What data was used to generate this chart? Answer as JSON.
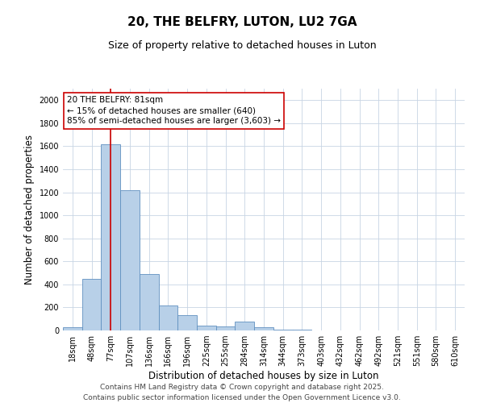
{
  "title_line1": "20, THE BELFRY, LUTON, LU2 7GA",
  "title_line2": "Size of property relative to detached houses in Luton",
  "xlabel": "Distribution of detached houses by size in Luton",
  "ylabel": "Number of detached properties",
  "categories": [
    "18sqm",
    "48sqm",
    "77sqm",
    "107sqm",
    "136sqm",
    "166sqm",
    "196sqm",
    "225sqm",
    "255sqm",
    "284sqm",
    "314sqm",
    "344sqm",
    "373sqm",
    "403sqm",
    "432sqm",
    "462sqm",
    "492sqm",
    "521sqm",
    "551sqm",
    "580sqm",
    "610sqm"
  ],
  "values": [
    30,
    450,
    1620,
    1220,
    490,
    220,
    130,
    45,
    35,
    75,
    30,
    8,
    4,
    2,
    0,
    0,
    0,
    0,
    0,
    0,
    0
  ],
  "bar_color": "#b8d0e8",
  "bar_edge_color": "#6090c0",
  "vline_x": 2,
  "vline_color": "#cc0000",
  "annotation_text": "20 THE BELFRY: 81sqm\n← 15% of detached houses are smaller (640)\n85% of semi-detached houses are larger (3,603) →",
  "annotation_box_color": "#ffffff",
  "annotation_box_edge_color": "#cc0000",
  "ylim": [
    0,
    2100
  ],
  "yticks": [
    0,
    200,
    400,
    600,
    800,
    1000,
    1200,
    1400,
    1600,
    1800,
    2000
  ],
  "footnote1": "Contains HM Land Registry data © Crown copyright and database right 2025.",
  "footnote2": "Contains public sector information licensed under the Open Government Licence v3.0.",
  "title_fontsize": 11,
  "subtitle_fontsize": 9,
  "tick_fontsize": 7,
  "label_fontsize": 8.5,
  "annotation_fontsize": 7.5,
  "footnote_fontsize": 6.5,
  "background_color": "#ffffff",
  "grid_color": "#c8d4e4"
}
